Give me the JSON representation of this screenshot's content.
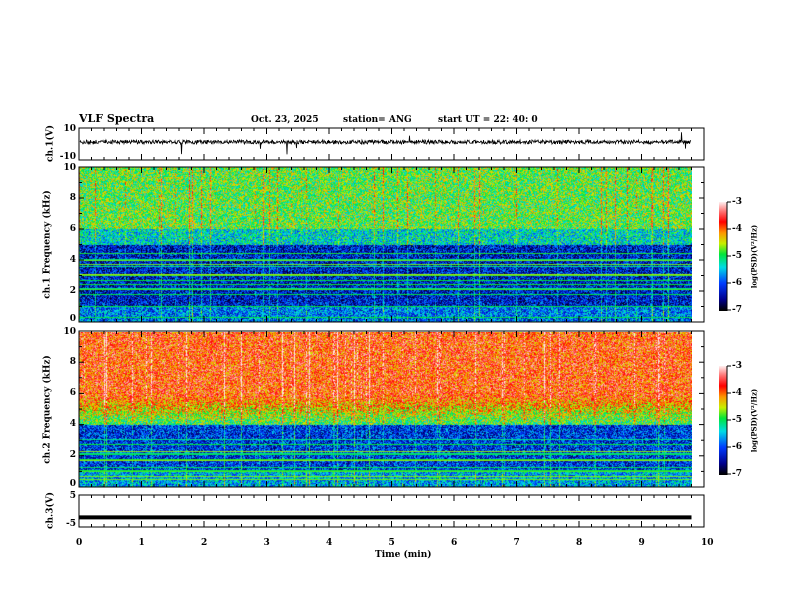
{
  "header": {
    "title": "VLF Spectra",
    "date": "Oct. 23, 2025",
    "station": "station= ANG",
    "start": "start  UT  =   22: 40: 0"
  },
  "chart_data": [
    {
      "type": "line",
      "name": "ch1-waveform",
      "ylabel": "ch.1(V)",
      "ylim": [
        -10,
        10
      ],
      "yticks": [
        "10",
        "-10"
      ],
      "xlim": [
        0,
        10
      ],
      "data_end_min": 9.8,
      "baseline": 0
    },
    {
      "type": "heatmap",
      "name": "ch1-spectrogram",
      "ylabel": "ch.1  Frequency  (kHz)",
      "ylim": [
        0,
        10
      ],
      "yticks": [
        "0",
        "2",
        "4",
        "6",
        "8",
        "10"
      ],
      "colorbar": {
        "label": "log(PSD)(V²/Hz)",
        "ticks": [
          "-3",
          "-4",
          "-5",
          "-6",
          "-7"
        ],
        "range": [
          -7,
          -3
        ]
      }
    },
    {
      "type": "heatmap",
      "name": "ch2-spectrogram",
      "ylabel": "ch.2  Frequency  (kHz)",
      "ylim": [
        0,
        10
      ],
      "yticks": [
        "0",
        "2",
        "4",
        "6",
        "8",
        "10"
      ],
      "colorbar": {
        "label": "log(PSD)(V²/Hz)",
        "ticks": [
          "-3",
          "-4",
          "-5",
          "-6",
          "-7"
        ],
        "range": [
          -7,
          -3
        ]
      }
    },
    {
      "type": "line",
      "name": "ch3-waveform",
      "ylabel": "ch.3(V)",
      "ylim": [
        -5,
        5
      ],
      "yticks": [
        "5",
        "-5"
      ],
      "value": -2
    }
  ],
  "xaxis": {
    "label": "Time  (min)",
    "ticks": [
      "0",
      "1",
      "2",
      "3",
      "4",
      "5",
      "6",
      "7",
      "8",
      "9",
      "10"
    ]
  }
}
